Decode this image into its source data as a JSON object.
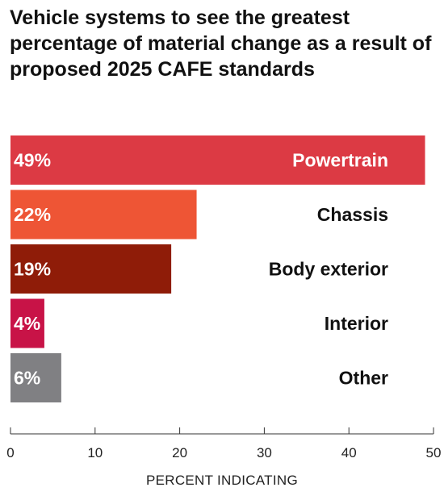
{
  "chart_data": {
    "type": "bar",
    "orientation": "horizontal",
    "title": "Vehicle systems to see the greatest percentage of material change as a result of proposed 2025 CAFE standards",
    "categories": [
      "Powertrain",
      "Chassis",
      "Body exterior",
      "Interior",
      "Other"
    ],
    "values": [
      49,
      22,
      19,
      4,
      6
    ],
    "value_labels": [
      "49%",
      "22%",
      "19%",
      "4%",
      "6%"
    ],
    "bar_colors": [
      "#dc3a44",
      "#ee5535",
      "#8f1c08",
      "#c81347",
      "#808083"
    ],
    "xlabel": "PERCENT INDICATING",
    "ylabel": "",
    "xlim": [
      0,
      50
    ],
    "xticks": [
      0,
      10,
      20,
      30,
      40,
      50
    ],
    "grid": false
  }
}
